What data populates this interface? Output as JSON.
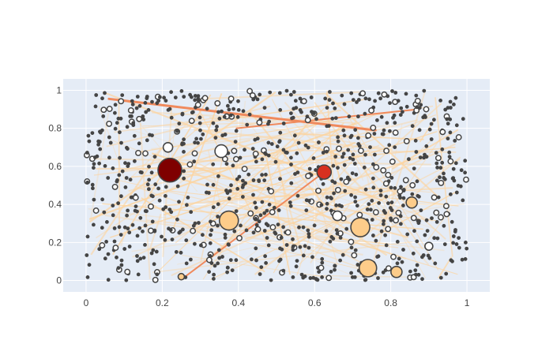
{
  "chart_data": {
    "type": "scatter",
    "title": "",
    "xlabel": "",
    "ylabel": "",
    "xlim": [
      -0.06,
      1.06
    ],
    "ylim": [
      -0.06,
      1.06
    ],
    "x_ticks": [
      "0",
      "0.2",
      "0.4",
      "0.6",
      "0.8",
      "1"
    ],
    "y_ticks": [
      "0",
      "0.2",
      "0.4",
      "0.6",
      "0.8",
      "1"
    ],
    "grid": true,
    "legend": "none",
    "colors": {
      "plot_bg": "#e5ecf6",
      "grid": "#ffffff",
      "node_edge": "#444444",
      "edge_light": "#fdd49e",
      "edge_strong": "#f08a5d",
      "node_large_dark": "#7f0000",
      "node_large_red": "#d7301f",
      "node_medium": "#fdcc8a"
    },
    "background_node_count": 900,
    "highlighted_nodes": [
      {
        "x": 0.22,
        "y": 0.58,
        "size": 15,
        "color": "#7f0000"
      },
      {
        "x": 0.625,
        "y": 0.57,
        "size": 9,
        "color": "#d7301f"
      },
      {
        "x": 0.375,
        "y": 0.315,
        "size": 12,
        "color": "#fdcc8a"
      },
      {
        "x": 0.72,
        "y": 0.28,
        "size": 12,
        "color": "#fdcc8a"
      },
      {
        "x": 0.74,
        "y": 0.065,
        "size": 11,
        "color": "#fdcc8a"
      },
      {
        "x": 0.815,
        "y": 0.045,
        "size": 7,
        "color": "#fdcc8a"
      },
      {
        "x": 0.855,
        "y": 0.41,
        "size": 7,
        "color": "#fdcc8a"
      },
      {
        "x": 0.355,
        "y": 0.68,
        "size": 8,
        "color": "#ffffff"
      },
      {
        "x": 0.66,
        "y": 0.34,
        "size": 6,
        "color": "#ffffff"
      },
      {
        "x": 0.215,
        "y": 0.7,
        "size": 6,
        "color": "#ffffff"
      },
      {
        "x": 0.25,
        "y": 0.02,
        "size": 4,
        "color": "#fdcc8a"
      },
      {
        "x": 0.9,
        "y": 0.18,
        "size": 5,
        "color": "#ffffff"
      }
    ],
    "strong_edges": [
      {
        "x": [
          0.06,
          0.76
        ],
        "y": [
          0.955,
          0.79
        ],
        "width": 3
      },
      {
        "x": [
          0.395,
          0.87
        ],
        "y": [
          0.8,
          0.9
        ],
        "width": 2
      },
      {
        "x": [
          0.25,
          0.625
        ],
        "y": [
          0.005,
          0.57
        ],
        "width": 2
      }
    ],
    "light_edge_count": 140
  }
}
